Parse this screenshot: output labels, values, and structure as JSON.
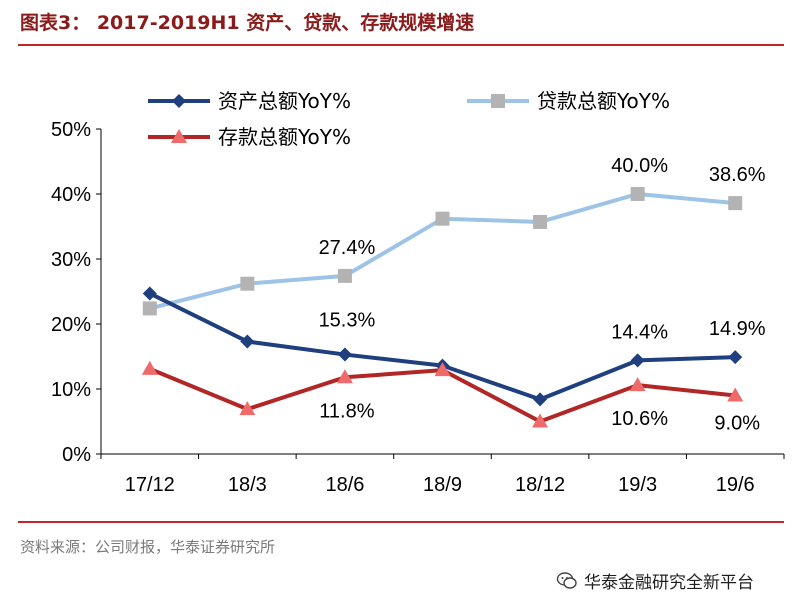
{
  "figure": {
    "title": "图表3：  2017-2019H1 资产、贷款、存款规模增速",
    "source": "资料来源：公司财报，华泰证券研究所",
    "watermark": "华泰金融研究全新平台"
  },
  "colors": {
    "rule": "#c0272d",
    "title": "#8b1a1a"
  },
  "chart_data": {
    "type": "line",
    "x": [
      "17/12",
      "18/3",
      "18/6",
      "18/9",
      "18/12",
      "19/3",
      "19/6"
    ],
    "ylim": [
      0,
      50
    ],
    "yticks": [
      "0%",
      "10%",
      "20%",
      "30%",
      "40%",
      "50%"
    ],
    "grid": false,
    "legend_position": "top",
    "series": [
      {
        "name": "资产总额YoY%",
        "color": "#1f3f7f",
        "marker": "diamond",
        "values": [
          24.7,
          17.3,
          15.3,
          13.6,
          8.4,
          14.4,
          14.9
        ]
      },
      {
        "name": "贷款总额YoY%",
        "color": "#9dc3e6",
        "marker": "square",
        "values": [
          22.4,
          26.2,
          27.4,
          36.2,
          35.7,
          40.0,
          38.6
        ]
      },
      {
        "name": "存款总额YoY%",
        "color": "#b22626",
        "marker": "triangle",
        "values": [
          13.1,
          6.9,
          11.8,
          12.9,
          5.0,
          10.6,
          9.0
        ]
      }
    ],
    "data_labels": [
      {
        "series": 1,
        "index": 2,
        "text": "27.4%"
      },
      {
        "series": 1,
        "index": 5,
        "text": "40.0%"
      },
      {
        "series": 1,
        "index": 6,
        "text": "38.6%"
      },
      {
        "series": 0,
        "index": 2,
        "text": "15.3%"
      },
      {
        "series": 0,
        "index": 5,
        "text": "14.4%"
      },
      {
        "series": 0,
        "index": 6,
        "text": "14.9%"
      },
      {
        "series": 2,
        "index": 2,
        "text": "11.8%"
      },
      {
        "series": 2,
        "index": 5,
        "text": "10.6%"
      },
      {
        "series": 2,
        "index": 6,
        "text": "9.0%"
      }
    ]
  }
}
